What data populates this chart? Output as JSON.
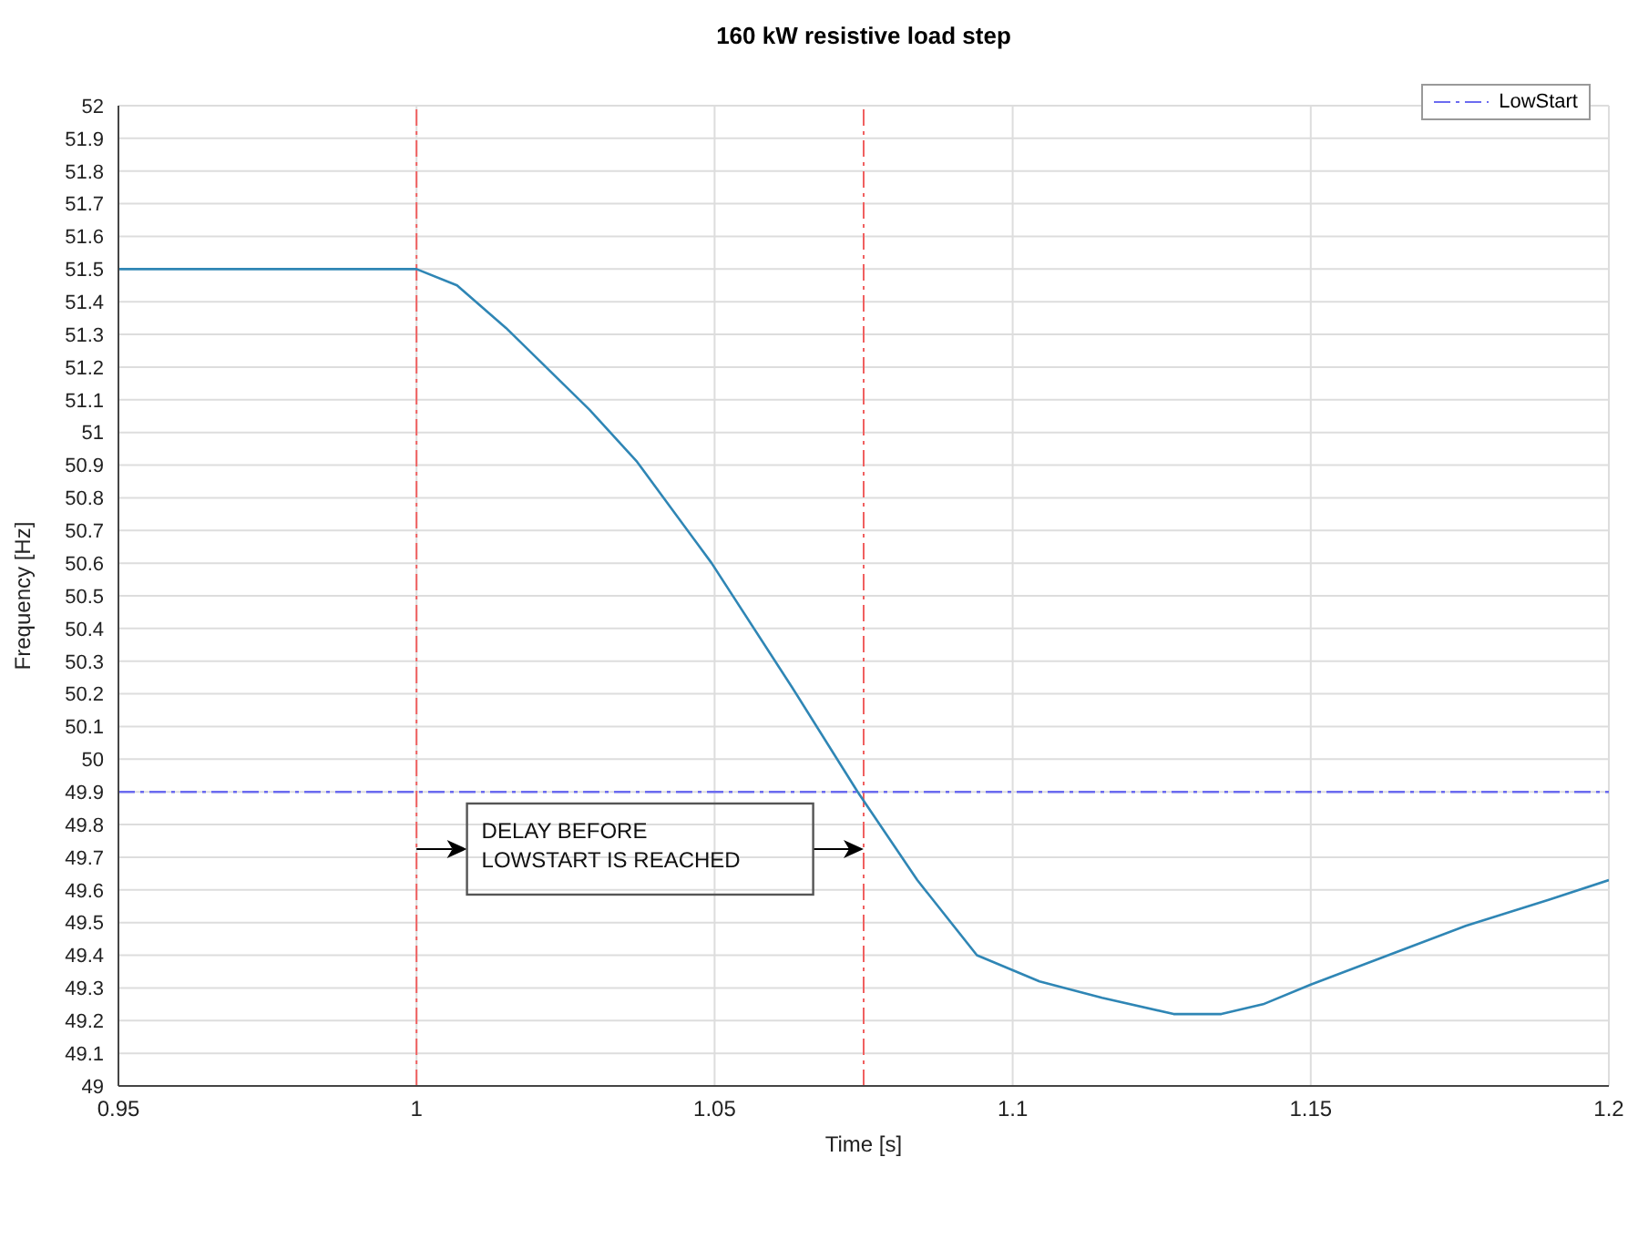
{
  "chart_data": {
    "type": "line",
    "title": "160 kW resistive load step",
    "xlabel": "Time [s]",
    "ylabel": "Frequency [Hz]",
    "xlim": [
      0.95,
      1.2
    ],
    "xticks": [
      0.95,
      1,
      1.05,
      1.1,
      1.15,
      1.2
    ],
    "ylim": [
      49,
      52
    ],
    "yticks": [
      49,
      49.1,
      49.2,
      49.3,
      49.4,
      49.5,
      49.6,
      49.7,
      49.8,
      49.9,
      50,
      50.1,
      50.2,
      50.3,
      50.4,
      50.5,
      50.6,
      50.7,
      50.8,
      50.9,
      51,
      51.1,
      51.2,
      51.3,
      51.4,
      51.5,
      51.6,
      51.7,
      51.8,
      51.9,
      52
    ],
    "grid": true,
    "legend": "top right",
    "marker": "none",
    "series": [
      {
        "color": "#2f86b5",
        "line_style": "solid",
        "x": [
          0.95,
          1.0,
          1.0068,
          1.015,
          1.029,
          1.037,
          1.0495,
          1.063,
          1.074,
          1.084,
          1.094,
          1.1045,
          1.115,
          1.127,
          1.135,
          1.142,
          1.15,
          1.163,
          1.176,
          1.19,
          1.2
        ],
        "values": [
          51.5,
          51.5,
          51.45,
          51.32,
          51.07,
          50.91,
          50.6,
          50.22,
          49.9,
          49.63,
          49.4,
          49.32,
          49.27,
          49.22,
          49.22,
          49.25,
          49.31,
          49.4,
          49.49,
          49.57,
          49.63
        ]
      },
      {
        "name": "LowStart",
        "color": "#6b6bf0",
        "line_style": "dashed",
        "x": [
          0.95,
          1.2
        ],
        "values": [
          49.9,
          49.9
        ]
      }
    ],
    "ref_lines": [
      {
        "axis": "x",
        "value": 1,
        "color": "#f06060",
        "line_style": "dashed"
      },
      {
        "axis": "x",
        "value": 1.075,
        "color": "#f06060",
        "line_style": "dashed"
      }
    ],
    "annotations": [
      "DELAY BEFORE\nLOWSTART IS REACHED"
    ]
  }
}
